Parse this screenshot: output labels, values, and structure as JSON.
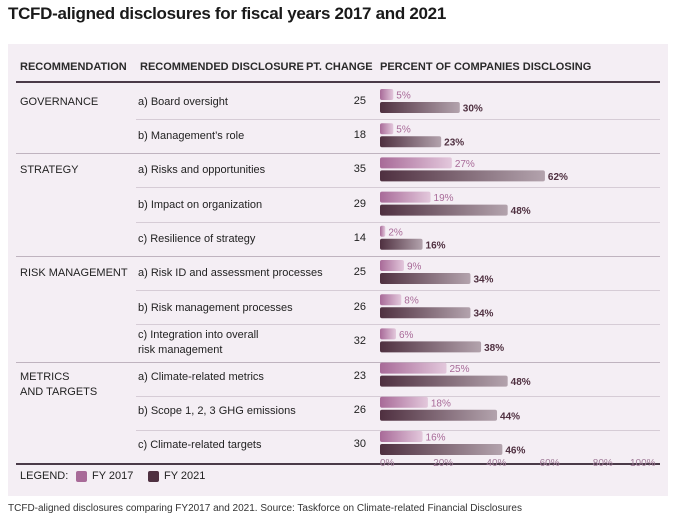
{
  "title": "TCFD-aligned disclosures for fiscal years 2017 and 2021",
  "caption": "TCFD-aligned disclosures comparing FY2017 and 2021. Source: Taskforce on Climate-related Financial Disclosures",
  "headers": {
    "recommendation": "RECOMMENDATION",
    "disclosure": "RECOMMENDED DISCLOSURE",
    "pt_change": "PT. CHANGE",
    "percent": "PERCENT OF COMPANIES DISCLOSING"
  },
  "groups": [
    "GOVERNANCE",
    "STRATEGY",
    "RISK MANAGEMENT",
    "METRICS\nAND TARGETS"
  ],
  "legend": {
    "label": "LEGEND:",
    "fy2017": "FY 2017",
    "fy2021": "FY 2021"
  },
  "colors": {
    "fy2017": "#a86a98",
    "fy2021": "#4f3040",
    "fy2017_light": "#e3c8dc",
    "fy2021_light": "#b3a3ad"
  },
  "chart_data": {
    "type": "bar",
    "orientation": "horizontal",
    "xlim": [
      0,
      100
    ],
    "x_ticks": [
      "0%",
      "20%",
      "40%",
      "60%",
      "80%",
      "100%"
    ],
    "categories": [
      "a) Board oversight",
      "b) Management’s role",
      "a) Risks and opportunities",
      "b) Impact on organization",
      "c) Resilience of strategy",
      "a) Risk ID and assessment processes",
      "b) Risk management processes",
      "c) Integration into overall\nrisk management",
      "a) Climate-related metrics",
      "b) Scope 1, 2, 3 GHG emissions",
      "c) Climate-related targets"
    ],
    "pt_change": [
      25,
      18,
      35,
      29,
      14,
      25,
      26,
      32,
      23,
      26,
      30
    ],
    "series": [
      {
        "name": "FY 2017",
        "values": [
          5,
          5,
          27,
          19,
          2,
          9,
          8,
          6,
          25,
          18,
          16
        ],
        "labels": [
          "5%",
          "5%",
          "27%",
          "19%",
          "2%",
          "9%",
          "8%",
          "6%",
          "25%",
          "18%",
          "16%"
        ]
      },
      {
        "name": "FY 2021",
        "values": [
          30,
          23,
          62,
          48,
          16,
          34,
          34,
          38,
          48,
          44,
          46
        ],
        "labels": [
          "30%",
          "23%",
          "62%",
          "48%",
          "16%",
          "34%",
          "34%",
          "38%",
          "48%",
          "44%",
          "46%"
        ]
      }
    ]
  }
}
